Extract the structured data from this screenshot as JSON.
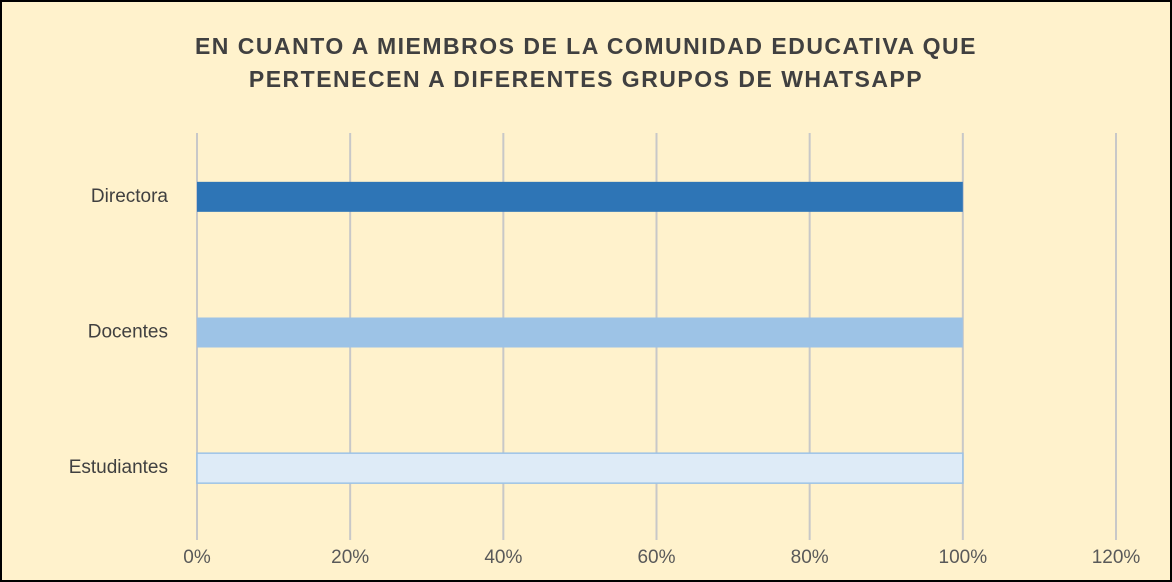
{
  "chart_data": {
    "type": "hbar",
    "title": [
      "EN CUANTO A MIEMBROS DE LA COMUNIDAD EDUCATIVA QUE",
      "PERTENECEN A DIFERENTES GRUPOS DE WHATSAPP"
    ],
    "categories": [
      "Directora",
      "Docentes",
      "Estudiantes"
    ],
    "values": [
      100,
      100,
      100
    ],
    "colors": [
      "#2e75b6",
      "#9dc3e6",
      "#deebf7"
    ],
    "xlim": [
      0,
      120
    ],
    "xticks": [
      {
        "value": 0,
        "label": "0%"
      },
      {
        "value": 20,
        "label": "20%"
      },
      {
        "value": 40,
        "label": "40%"
      },
      {
        "value": 60,
        "label": "60%"
      },
      {
        "value": 80,
        "label": "80%"
      },
      {
        "value": 100,
        "label": "100%"
      },
      {
        "value": 120,
        "label": "120%"
      }
    ],
    "grid": true
  }
}
